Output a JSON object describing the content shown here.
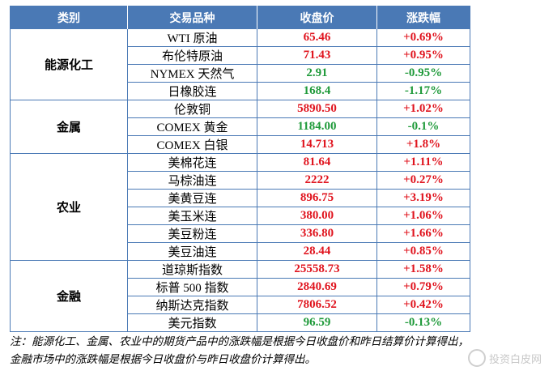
{
  "header": {
    "col_category": "类别",
    "col_product": "交易品种",
    "col_close": "收盘价",
    "col_change": "涨跌幅"
  },
  "groups": [
    {
      "name": "能源化工",
      "rows": [
        {
          "product": "WTI 原油",
          "close": "65.46",
          "change": "+0.69%",
          "dir": "up"
        },
        {
          "product": "布伦特原油",
          "close": "71.43",
          "change": "+0.95%",
          "dir": "up"
        },
        {
          "product": "NYMEX 天然气",
          "close": "2.91",
          "change": "-0.95%",
          "dir": "down"
        },
        {
          "product": "日橡胶连",
          "close": "168.4",
          "change": "-1.17%",
          "dir": "down"
        }
      ]
    },
    {
      "name": "金属",
      "rows": [
        {
          "product": "伦敦铜",
          "close": "5890.50",
          "change": "+1.02%",
          "dir": "up"
        },
        {
          "product": "COMEX 黄金",
          "close": "1184.00",
          "change": "-0.1%",
          "dir": "down"
        },
        {
          "product": "COMEX 白银",
          "close": "14.713",
          "change": "+1.8%",
          "dir": "up"
        }
      ]
    },
    {
      "name": "农业",
      "rows": [
        {
          "product": "美棉花连",
          "close": "81.64",
          "change": "+1.11%",
          "dir": "up"
        },
        {
          "product": "马棕油连",
          "close": "2222",
          "change": "+0.27%",
          "dir": "up"
        },
        {
          "product": "美黄豆连",
          "close": "896.75",
          "change": "+3.19%",
          "dir": "up"
        },
        {
          "product": "美玉米连",
          "close": "380.00",
          "change": "+1.06%",
          "dir": "up"
        },
        {
          "product": "美豆粉连",
          "close": "336.80",
          "change": "+1.66%",
          "dir": "up"
        },
        {
          "product": "美豆油连",
          "close": "28.44",
          "change": "+0.85%",
          "dir": "up"
        }
      ]
    },
    {
      "name": "金融",
      "rows": [
        {
          "product": "道琼斯指数",
          "close": "25558.73",
          "change": "+1.58%",
          "dir": "up"
        },
        {
          "product": "标普 500 指数",
          "close": "2840.69",
          "change": "+0.79%",
          "dir": "up"
        },
        {
          "product": "纳斯达克指数",
          "close": "7806.52",
          "change": "+0.42%",
          "dir": "up"
        },
        {
          "product": "美元指数",
          "close": "96.59",
          "change": "-0.13%",
          "dir": "down"
        }
      ]
    }
  ],
  "colors": {
    "header_bg": "#4a79b5",
    "up": "#e0141e",
    "down": "#1f9a3a"
  },
  "note": "注：能源化工、金属、农业中的期货产品中的涨跌幅是根据今日收盘价和昨日结算价计算得出，金融市场中的涨跌幅是根据今日收盘价与昨日收盘价计算得出。",
  "watermark": "投资白皮网"
}
